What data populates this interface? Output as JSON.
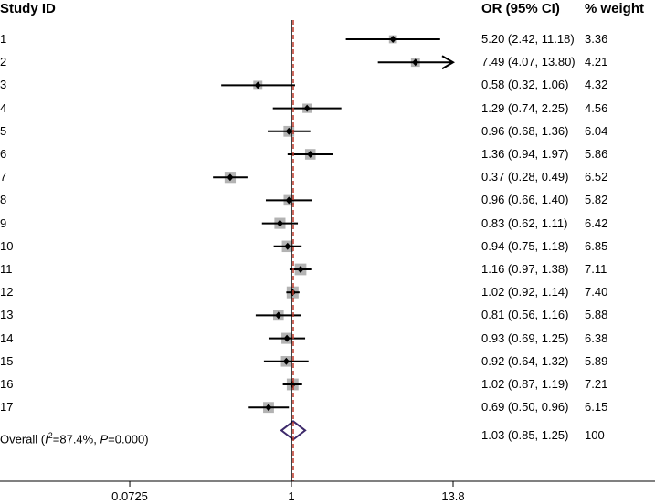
{
  "chart_data": {
    "type": "forest",
    "headers": {
      "study": "Study ID",
      "or": "OR (95% CI)",
      "weight": "% weight"
    },
    "x_scale": "log",
    "xlim": [
      0.0725,
      13.8
    ],
    "x_ticks": [
      "0.0725",
      "1",
      "13.8"
    ],
    "reference_line": 1,
    "pooled_line": 1.03,
    "studies": [
      {
        "id": "1",
        "or": 5.2,
        "lo": 2.42,
        "hi": 11.18,
        "or_text": "5.20 (2.42, 11.18)",
        "weight": 3.36,
        "weight_text": "3.36"
      },
      {
        "id": "2",
        "or": 7.49,
        "lo": 4.07,
        "hi": 13.8,
        "or_text": "7.49 (4.07, 13.80)",
        "weight": 4.21,
        "weight_text": "4.21",
        "arrow": true
      },
      {
        "id": "3",
        "or": 0.58,
        "lo": 0.32,
        "hi": 1.06,
        "or_text": "0.58 (0.32, 1.06)",
        "weight": 4.32,
        "weight_text": "4.32"
      },
      {
        "id": "4",
        "or": 1.29,
        "lo": 0.74,
        "hi": 2.25,
        "or_text": "1.29 (0.74, 2.25)",
        "weight": 4.56,
        "weight_text": "4.56"
      },
      {
        "id": "5",
        "or": 0.96,
        "lo": 0.68,
        "hi": 1.36,
        "or_text": "0.96 (0.68, 1.36)",
        "weight": 6.04,
        "weight_text": "6.04"
      },
      {
        "id": "6",
        "or": 1.36,
        "lo": 0.94,
        "hi": 1.97,
        "or_text": "1.36 (0.94, 1.97)",
        "weight": 5.86,
        "weight_text": "5.86"
      },
      {
        "id": "7",
        "or": 0.37,
        "lo": 0.28,
        "hi": 0.49,
        "or_text": "0.37 (0.28, 0.49)",
        "weight": 6.52,
        "weight_text": "6.52"
      },
      {
        "id": "8",
        "or": 0.96,
        "lo": 0.66,
        "hi": 1.4,
        "or_text": "0.96 (0.66, 1.40)",
        "weight": 5.82,
        "weight_text": "5.82"
      },
      {
        "id": "9",
        "or": 0.83,
        "lo": 0.62,
        "hi": 1.11,
        "or_text": "0.83 (0.62, 1.11)",
        "weight": 6.42,
        "weight_text": "6.42"
      },
      {
        "id": "10",
        "or": 0.94,
        "lo": 0.75,
        "hi": 1.18,
        "or_text": "0.94 (0.75, 1.18)",
        "weight": 6.85,
        "weight_text": "6.85"
      },
      {
        "id": "11",
        "or": 1.16,
        "lo": 0.97,
        "hi": 1.38,
        "or_text": "1.16 (0.97, 1.38)",
        "weight": 7.11,
        "weight_text": "7.11"
      },
      {
        "id": "12",
        "or": 1.02,
        "lo": 0.92,
        "hi": 1.14,
        "or_text": "1.02 (0.92, 1.14)",
        "weight": 7.4,
        "weight_text": "7.40"
      },
      {
        "id": "13",
        "or": 0.81,
        "lo": 0.56,
        "hi": 1.16,
        "or_text": "0.81 (0.56, 1.16)",
        "weight": 5.88,
        "weight_text": "5.88"
      },
      {
        "id": "14",
        "or": 0.93,
        "lo": 0.69,
        "hi": 1.25,
        "or_text": "0.93 (0.69, 1.25)",
        "weight": 6.38,
        "weight_text": "6.38"
      },
      {
        "id": "15",
        "or": 0.92,
        "lo": 0.64,
        "hi": 1.32,
        "or_text": "0.92 (0.64, 1.32)",
        "weight": 5.89,
        "weight_text": "5.89"
      },
      {
        "id": "16",
        "or": 1.02,
        "lo": 0.87,
        "hi": 1.19,
        "or_text": "1.02 (0.87, 1.19)",
        "weight": 7.21,
        "weight_text": "7.21"
      },
      {
        "id": "17",
        "or": 0.69,
        "lo": 0.5,
        "hi": 0.96,
        "or_text": "0.69 (0.50, 0.96)",
        "weight": 6.15,
        "weight_text": "6.15"
      }
    ],
    "overall": {
      "label_prefix": "Overall (",
      "i2_symbol": "I",
      "i2_sup": "2",
      "i2_value": "=87.4%, ",
      "p_symbol": "P",
      "p_value": "=0.000)",
      "or": 1.03,
      "lo": 0.85,
      "hi": 1.25,
      "or_text": "1.03 (0.85, 1.25)",
      "weight_text": "100"
    },
    "colors": {
      "ci_line": "#000000",
      "weight_box": "#b3b3b3",
      "diamond": "#3d2a6b",
      "pooled_line": "#c0392b",
      "reference_line": "#000000"
    }
  }
}
